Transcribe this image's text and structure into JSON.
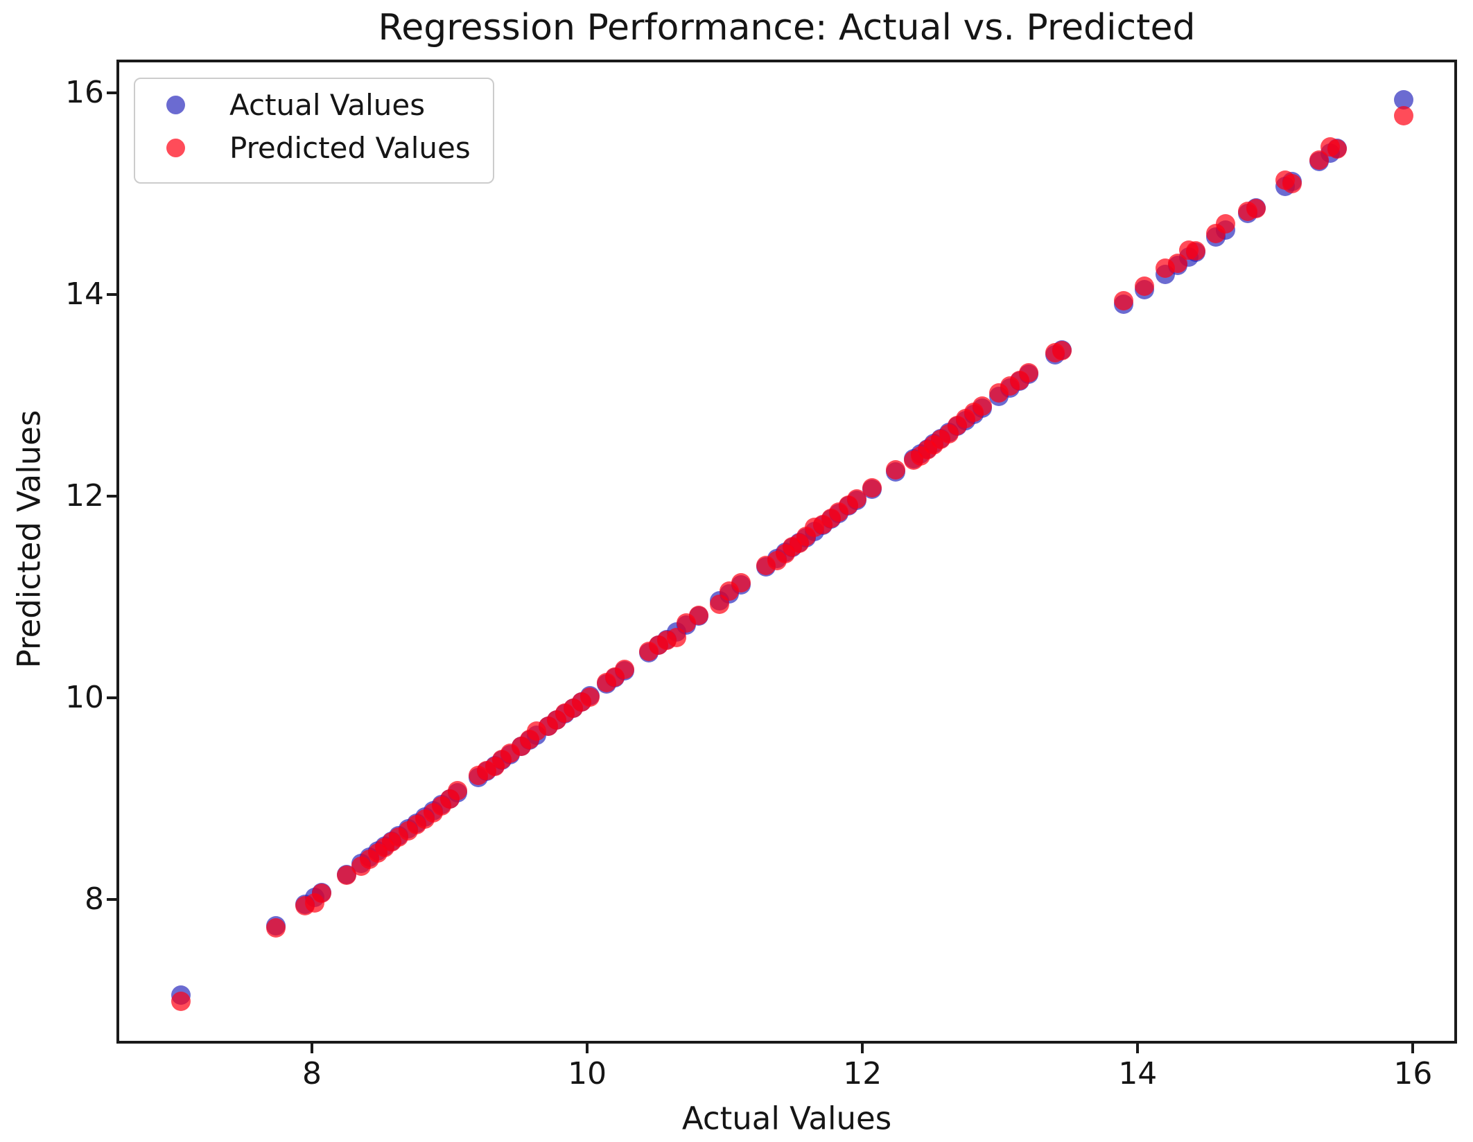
{
  "chart": {
    "title": "Regression Performance: Actual vs. Predicted",
    "xlabel": "Actual Values",
    "ylabel": "Predicted Values",
    "legend": {
      "items": [
        {
          "label": "Actual Values"
        },
        {
          "label": "Predicted Values"
        }
      ]
    }
  },
  "chart_data": {
    "type": "scatter",
    "title": "Regression Performance: Actual vs. Predicted",
    "xlabel": "Actual Values",
    "ylabel": "Predicted Values",
    "xlim": [
      6.6,
      16.3
    ],
    "ylim": [
      6.6,
      16.3
    ],
    "xticks": [
      8,
      10,
      12,
      14,
      16
    ],
    "yticks": [
      8,
      10,
      12,
      14,
      16
    ],
    "grid": false,
    "legend_position": "upper left",
    "marker_diameter_px": 28,
    "series": [
      {
        "name": "Actual Values",
        "color": "rgba(30,30,185,0.66)",
        "plotted_as": "x=actual, y=actual"
      },
      {
        "name": "Predicted Values",
        "color": "rgba(255,0,18,0.70)",
        "plotted_as": "x=actual, y=predicted"
      }
    ],
    "points_actual_predicted": [
      [
        7.05,
        6.99
      ],
      [
        7.74,
        7.72
      ],
      [
        7.95,
        7.94
      ],
      [
        8.02,
        7.97
      ],
      [
        8.07,
        8.06
      ],
      [
        8.25,
        8.24
      ],
      [
        8.36,
        8.33
      ],
      [
        8.42,
        8.4
      ],
      [
        8.48,
        8.46
      ],
      [
        8.53,
        8.52
      ],
      [
        8.58,
        8.57
      ],
      [
        8.63,
        8.62
      ],
      [
        8.7,
        8.68
      ],
      [
        8.76,
        8.74
      ],
      [
        8.82,
        8.8
      ],
      [
        8.88,
        8.86
      ],
      [
        8.94,
        8.93
      ],
      [
        9.0,
        9.0
      ],
      [
        9.06,
        9.08
      ],
      [
        9.21,
        9.23
      ],
      [
        9.27,
        9.28
      ],
      [
        9.33,
        9.32
      ],
      [
        9.38,
        9.39
      ],
      [
        9.44,
        9.45
      ],
      [
        9.52,
        9.52
      ],
      [
        9.58,
        9.59
      ],
      [
        9.63,
        9.67
      ],
      [
        9.72,
        9.72
      ],
      [
        9.78,
        9.78
      ],
      [
        9.84,
        9.85
      ],
      [
        9.9,
        9.9
      ],
      [
        9.96,
        9.96
      ],
      [
        10.02,
        10.01
      ],
      [
        10.14,
        10.15
      ],
      [
        10.2,
        10.21
      ],
      [
        10.27,
        10.28
      ],
      [
        10.45,
        10.46
      ],
      [
        10.52,
        10.52
      ],
      [
        10.58,
        10.57
      ],
      [
        10.65,
        10.6
      ],
      [
        10.72,
        10.74
      ],
      [
        10.81,
        10.82
      ],
      [
        10.96,
        10.93
      ],
      [
        11.03,
        11.06
      ],
      [
        11.12,
        11.14
      ],
      [
        11.3,
        11.31
      ],
      [
        11.38,
        11.36
      ],
      [
        11.44,
        11.43
      ],
      [
        11.49,
        11.5
      ],
      [
        11.54,
        11.53
      ],
      [
        11.59,
        11.6
      ],
      [
        11.65,
        11.69
      ],
      [
        11.71,
        11.72
      ],
      [
        11.77,
        11.78
      ],
      [
        11.83,
        11.84
      ],
      [
        11.9,
        11.91
      ],
      [
        11.96,
        11.97
      ],
      [
        12.07,
        12.08
      ],
      [
        12.24,
        12.26
      ],
      [
        12.37,
        12.36
      ],
      [
        12.42,
        12.4
      ],
      [
        12.47,
        12.46
      ],
      [
        12.52,
        12.51
      ],
      [
        12.57,
        12.56
      ],
      [
        12.63,
        12.62
      ],
      [
        12.69,
        12.7
      ],
      [
        12.75,
        12.77
      ],
      [
        12.81,
        12.83
      ],
      [
        12.87,
        12.89
      ],
      [
        12.99,
        13.02
      ],
      [
        13.07,
        13.09
      ],
      [
        13.14,
        13.15
      ],
      [
        13.21,
        13.22
      ],
      [
        13.4,
        13.42
      ],
      [
        13.45,
        13.44
      ],
      [
        13.9,
        13.94
      ],
      [
        14.05,
        14.08
      ],
      [
        14.2,
        14.26
      ],
      [
        14.29,
        14.31
      ],
      [
        14.37,
        14.44
      ],
      [
        14.42,
        14.43
      ],
      [
        14.57,
        14.6
      ],
      [
        14.64,
        14.7
      ],
      [
        14.8,
        14.82
      ],
      [
        14.86,
        14.85
      ],
      [
        15.07,
        15.13
      ],
      [
        15.12,
        15.1
      ],
      [
        15.32,
        15.33
      ],
      [
        15.4,
        15.46
      ],
      [
        15.45,
        15.44
      ],
      [
        15.93,
        15.77
      ]
    ]
  }
}
